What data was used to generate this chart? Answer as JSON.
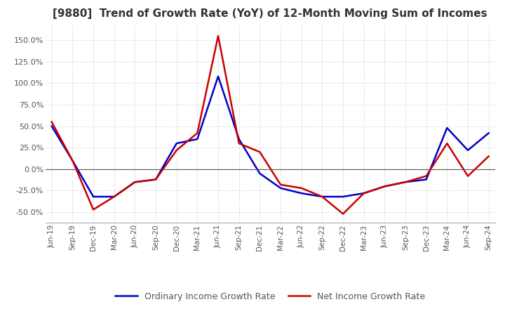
{
  "title": "[9880]  Trend of Growth Rate (YoY) of 12-Month Moving Sum of Incomes",
  "x_labels": [
    "Jun-19",
    "Sep-19",
    "Dec-19",
    "Mar-20",
    "Jun-20",
    "Sep-20",
    "Dec-20",
    "Mar-21",
    "Jun-21",
    "Sep-21",
    "Dec-21",
    "Mar-22",
    "Jun-22",
    "Sep-22",
    "Dec-22",
    "Mar-23",
    "Jun-23",
    "Sep-23",
    "Dec-23",
    "Mar-24",
    "Jun-24",
    "Sep-24"
  ],
  "ordinary_income": [
    50,
    10,
    -32,
    -32,
    -15,
    -12,
    30,
    35,
    108,
    35,
    -5,
    -22,
    -28,
    -32,
    -32,
    -28,
    -20,
    -15,
    -12,
    48,
    22,
    42
  ],
  "net_income": [
    55,
    10,
    -47,
    -32,
    -15,
    -12,
    22,
    42,
    155,
    30,
    20,
    -18,
    -22,
    -32,
    -52,
    -28,
    -20,
    -15,
    -8,
    30,
    -8,
    15
  ],
  "ordinary_color": "#0000cc",
  "net_color": "#cc0000",
  "ylim": [
    -62,
    168
  ],
  "yticks": [
    -50,
    -25,
    0,
    25,
    50,
    75,
    100,
    125,
    150
  ],
  "bg_color": "#ffffff",
  "grid_color": "#c8c8c8",
  "title_color": "#333333",
  "legend_labels": [
    "Ordinary Income Growth Rate",
    "Net Income Growth Rate"
  ]
}
